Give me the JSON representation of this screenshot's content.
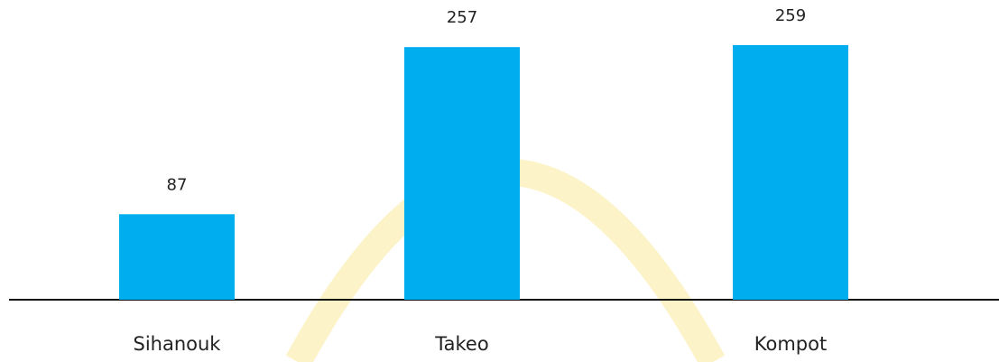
{
  "chart_data": {
    "type": "bar",
    "categories": [
      "Sihanouk",
      "Takeo",
      "Kompot"
    ],
    "values": [
      87,
      257,
      259
    ],
    "color": "#00adef"
  }
}
